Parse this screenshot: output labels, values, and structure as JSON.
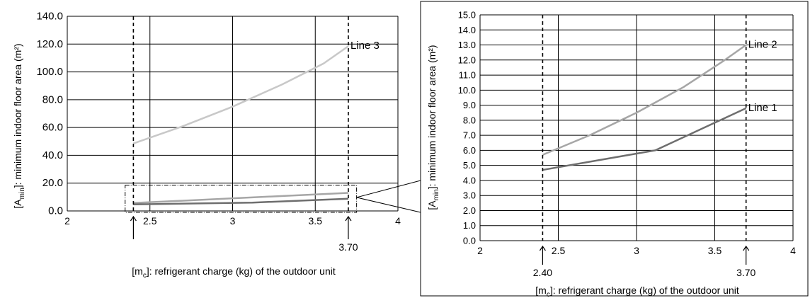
{
  "colors": {
    "line1": "#6e6e6e",
    "line2": "#a6a6a6",
    "line3": "#c8c8c8",
    "grid": "#000000",
    "frame": "#000000"
  },
  "chart_data": [
    {
      "type": "line",
      "title": "",
      "xlabel": "[m_c]: refrigerant charge (kg) of the outdoor unit",
      "xlabel_parts": {
        "pre": "[m",
        "sub": "c",
        "post": "]: refrigerant charge (kg) of the outdoor unit"
      },
      "ylabel": "[A_min]: minimum indoor floor area (m²)",
      "ylabel_parts": {
        "pre": "[A",
        "sub": "min",
        "post": "]: minimum indoor floor area (m²)"
      },
      "xlim": [
        2,
        4
      ],
      "ylim": [
        0,
        140
      ],
      "x_ticks": [
        {
          "v": 2,
          "label": "2"
        },
        {
          "v": 2.5,
          "label": "2.5"
        },
        {
          "v": 3,
          "label": "3"
        },
        {
          "v": 3.5,
          "label": "3.5"
        },
        {
          "v": 4,
          "label": "4"
        }
      ],
      "y_ticks": [
        {
          "v": 0,
          "label": "0.0"
        },
        {
          "v": 20,
          "label": "20.0"
        },
        {
          "v": 40,
          "label": "40.0"
        },
        {
          "v": 60,
          "label": "60.0"
        },
        {
          "v": 80,
          "label": "80.0"
        },
        {
          "v": 100,
          "label": "100.0"
        },
        {
          "v": 120,
          "label": "120.0"
        },
        {
          "v": 140,
          "label": "140.0"
        }
      ],
      "grid": true,
      "vlines": [
        {
          "x": 2.4,
          "label": ""
        },
        {
          "x": 3.7,
          "label": "3.70"
        }
      ],
      "series": [
        {
          "name": "Line 3",
          "color_key": "line3",
          "label_at_end": true,
          "x": [
            2.4,
            2.7,
            3.0,
            3.3,
            3.55,
            3.7
          ],
          "y": [
            48.5,
            61,
            75,
            91,
            106,
            118.5
          ]
        },
        {
          "name": "",
          "color_key": "line2",
          "label_at_end": false,
          "x": [
            2.4,
            3.7
          ],
          "y": [
            5.7,
            13.0
          ]
        },
        {
          "name": "",
          "color_key": "line1",
          "label_at_end": false,
          "x": [
            2.4,
            3.12,
            3.7
          ],
          "y": [
            4.7,
            6.0,
            8.8
          ]
        }
      ],
      "zoom_box": {
        "x0": 2.35,
        "x1": 3.75,
        "y0": 0,
        "y1": 18.5
      }
    },
    {
      "type": "line",
      "title": "",
      "xlabel": "[m_c]: refrigerant charge (kg) of the outdoor unit",
      "xlabel_parts": {
        "pre": "[m",
        "sub": "c",
        "post": "]: refrigerant charge (kg) of the outdoor unit"
      },
      "ylabel": "[A_min]: minimum indoor floor area (m²)",
      "ylabel_parts": {
        "pre": "[A",
        "sub": "min",
        "post": "]: minimum indoor floor area (m²)"
      },
      "xlim": [
        2,
        4
      ],
      "ylim": [
        0,
        15
      ],
      "x_ticks": [
        {
          "v": 2,
          "label": "2"
        },
        {
          "v": 2.5,
          "label": "2.5"
        },
        {
          "v": 3,
          "label": "3"
        },
        {
          "v": 3.5,
          "label": "3.5"
        },
        {
          "v": 4,
          "label": "4"
        }
      ],
      "y_ticks": [
        {
          "v": 0,
          "label": "0.0"
        },
        {
          "v": 1,
          "label": "1.0"
        },
        {
          "v": 2,
          "label": "2.0"
        },
        {
          "v": 3,
          "label": "3.0"
        },
        {
          "v": 4,
          "label": "4.0"
        },
        {
          "v": 5,
          "label": "5.0"
        },
        {
          "v": 6,
          "label": "6.0"
        },
        {
          "v": 7,
          "label": "7.0"
        },
        {
          "v": 8,
          "label": "8.0"
        },
        {
          "v": 9,
          "label": "9.0"
        },
        {
          "v": 10,
          "label": "10.0"
        },
        {
          "v": 11,
          "label": "11.0"
        },
        {
          "v": 12,
          "label": "12.0"
        },
        {
          "v": 13,
          "label": "13.0"
        },
        {
          "v": 14,
          "label": "14.0"
        },
        {
          "v": 15,
          "label": "15.0"
        }
      ],
      "grid": true,
      "vlines": [
        {
          "x": 2.4,
          "label": "2.40"
        },
        {
          "x": 3.7,
          "label": "3.70"
        }
      ],
      "series": [
        {
          "name": "Line 2",
          "color_key": "line2",
          "label_at_end": true,
          "x": [
            2.4,
            2.7,
            3.0,
            3.3,
            3.55,
            3.7
          ],
          "y": [
            5.7,
            7.0,
            8.5,
            10.2,
            11.9,
            13.0
          ]
        },
        {
          "name": "Line 1",
          "color_key": "line1",
          "label_at_end": true,
          "x": [
            2.4,
            3.12,
            3.7
          ],
          "y": [
            4.7,
            6.0,
            8.8
          ]
        }
      ]
    }
  ]
}
